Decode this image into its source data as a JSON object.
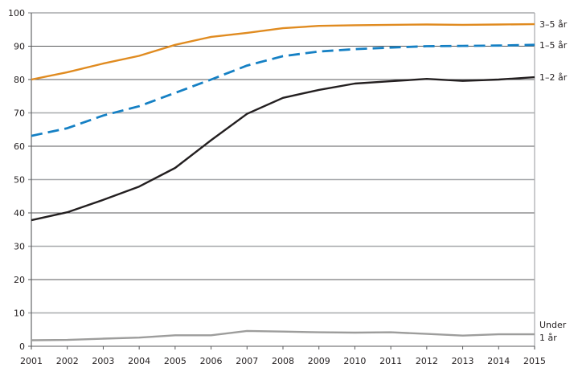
{
  "chart_data": {
    "type": "line",
    "title": "",
    "xlabel": "",
    "ylabel": "",
    "x": [
      2001,
      2002,
      2003,
      2004,
      2005,
      2006,
      2007,
      2008,
      2009,
      2010,
      2011,
      2012,
      2013,
      2014,
      2015
    ],
    "xticks": [
      "2001",
      "2002",
      "2003",
      "2004",
      "2005",
      "2006",
      "2007",
      "2008",
      "2009",
      "2010",
      "2011",
      "2012",
      "2013",
      "2014",
      "2015"
    ],
    "ylim": [
      0,
      100
    ],
    "yticks": [
      "0",
      "10",
      "20",
      "30",
      "40",
      "50",
      "60",
      "70",
      "80",
      "90",
      "100"
    ],
    "grid": true,
    "legend": "inline-right",
    "series": [
      {
        "name": "3–5 år",
        "label_lines": [
          "3–5 år"
        ],
        "color": "#e08b20",
        "style": "solid",
        "values": [
          80.0,
          82.2,
          84.8,
          87.1,
          90.4,
          92.8,
          94.0,
          95.4,
          96.1,
          96.3,
          96.4,
          96.5,
          96.4,
          96.5,
          96.6
        ]
      },
      {
        "name": "1–5 år",
        "label_lines": [
          "1–5 år"
        ],
        "color": "#1580c4",
        "style": "dashed",
        "values": [
          63.1,
          65.4,
          69.2,
          72.0,
          76.0,
          80.0,
          84.2,
          87.0,
          88.4,
          89.1,
          89.6,
          90.0,
          90.1,
          90.2,
          90.4
        ]
      },
      {
        "name": "1–2 år",
        "label_lines": [
          "1–2 år"
        ],
        "color": "#231f20",
        "style": "solid",
        "values": [
          37.8,
          40.2,
          43.9,
          47.9,
          53.5,
          61.8,
          69.7,
          74.5,
          76.9,
          78.8,
          79.5,
          80.2,
          79.6,
          80.0,
          80.7
        ]
      },
      {
        "name": "Under 1 år",
        "label_lines": [
          "Under",
          "1 år"
        ],
        "color": "#9d9d9c",
        "style": "solid",
        "values": [
          1.8,
          1.9,
          2.3,
          2.6,
          3.3,
          3.3,
          4.6,
          4.4,
          4.2,
          4.1,
          4.2,
          3.7,
          3.2,
          3.6,
          3.6
        ]
      }
    ]
  }
}
